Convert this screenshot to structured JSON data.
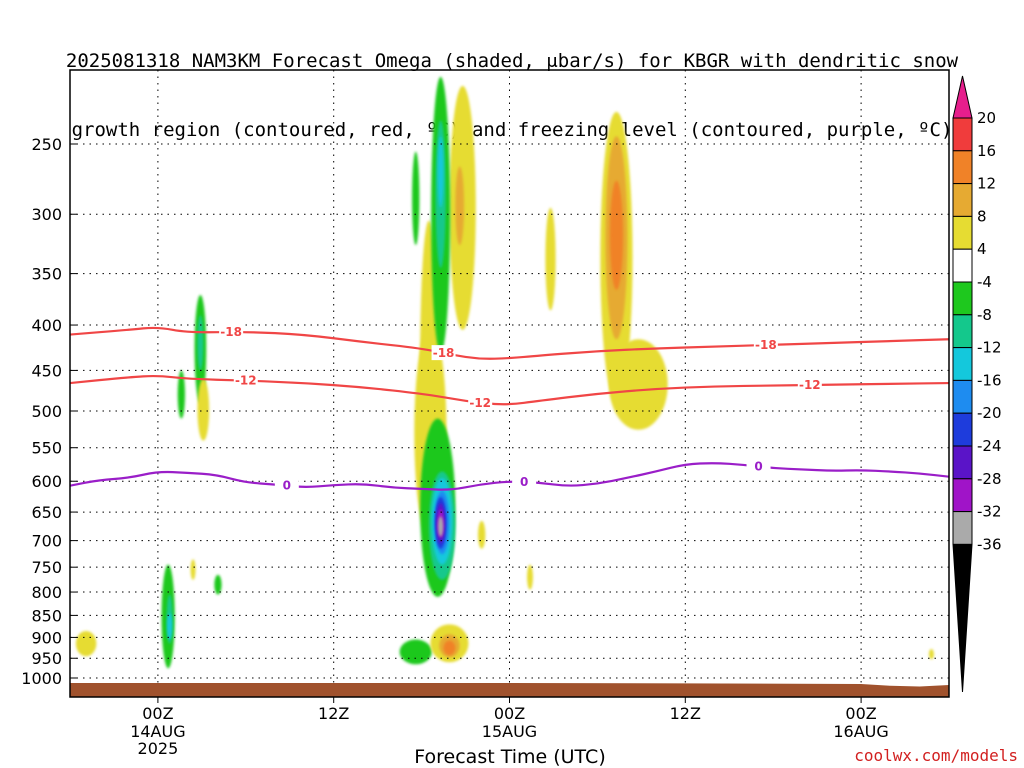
{
  "title": {
    "line1": "2025081318 NAM3KM Forecast Omega (shaded, μbar/s) for KBGR with dendritic snow",
    "line2": "growth region (contoured, red, ºC) and freezing level (contoured, purple, ºC)"
  },
  "credit": "coolwx.com/models",
  "chart_data": {
    "type": "heatmap",
    "xlabel": "Forecast Time (UTC)",
    "ylabel": "",
    "x_unit": "forecast hour from 2025-08-13 18Z",
    "xlim": [
      0,
      60
    ],
    "ylim": [
      1025,
      200
    ],
    "y_scale": "log-pressure",
    "x_ticks": [
      {
        "hour": 6,
        "label": "00Z",
        "sub": [
          "14AUG",
          "2025"
        ]
      },
      {
        "hour": 18,
        "label": "12Z",
        "sub": []
      },
      {
        "hour": 30,
        "label": "00Z",
        "sub": [
          "15AUG"
        ]
      },
      {
        "hour": 42,
        "label": "12Z",
        "sub": []
      },
      {
        "hour": 54,
        "label": "00Z",
        "sub": [
          "16AUG"
        ]
      }
    ],
    "y_ticks": [
      250,
      300,
      350,
      400,
      450,
      500,
      550,
      600,
      650,
      700,
      750,
      800,
      850,
      900,
      950,
      1000
    ],
    "grid": true,
    "colorbar": {
      "label_unit": "μbar/s",
      "labels": [
        "20",
        "16",
        "12",
        "8",
        "4",
        "-4",
        "-8",
        "-12",
        "-16",
        "-20",
        "-24",
        "-28",
        "-32",
        "-36"
      ],
      "bins": [
        {
          "range": "16..20",
          "color": "#f03c3c"
        },
        {
          "range": "12..16",
          "color": "#f08228"
        },
        {
          "range": "8..12",
          "color": "#e6aa32"
        },
        {
          "range": "4..8",
          "color": "#e6dc32"
        },
        {
          "range": "-4..4",
          "color": "#ffffff"
        },
        {
          "range": "-8..-4",
          "color": "#1ec81e"
        },
        {
          "range": "-12..-8",
          "color": "#14c88c"
        },
        {
          "range": "-16..-12",
          "color": "#14c8dc"
        },
        {
          "range": "-20..-16",
          "color": "#1e8cf0"
        },
        {
          "range": "-24..-20",
          "color": "#1e3cdc"
        },
        {
          "range": "-28..-24",
          "color": "#5a14c8"
        },
        {
          "range": "-32..-28",
          "color": "#a014c8"
        },
        {
          "range": "-36..-32",
          "color": "#aaaaaa"
        }
      ],
      "over_color": "#e61e8c",
      "under_color": "#000000"
    },
    "contours": [
      {
        "name": "-18",
        "color": "#f04646",
        "label": "-18",
        "x": [
          0,
          4,
          6,
          8,
          12,
          16,
          20,
          24,
          26,
          28,
          30,
          32,
          36,
          40,
          44,
          48,
          52,
          56,
          60
        ],
        "y": [
          410,
          405,
          402,
          408,
          407,
          410,
          418,
          425,
          432,
          437,
          436,
          433,
          428,
          425,
          423,
          421,
          419,
          417,
          415
        ]
      },
      {
        "name": "-12",
        "color": "#f04646",
        "label": "-12",
        "x": [
          0,
          4,
          6,
          8,
          12,
          16,
          20,
          24,
          26,
          28,
          30,
          32,
          36,
          40,
          44,
          48,
          52,
          56,
          60
        ],
        "y": [
          465,
          458,
          456,
          460,
          462,
          465,
          470,
          478,
          484,
          490,
          492,
          487,
          478,
          472,
          469,
          468,
          467,
          466,
          465
        ]
      },
      {
        "name": "0",
        "color": "#9a1ec8",
        "label": "0",
        "x": [
          0,
          2,
          4,
          6,
          8,
          10,
          12,
          14,
          16,
          18,
          20,
          22,
          24,
          26,
          28,
          30,
          32,
          34,
          36,
          38,
          40,
          42,
          44,
          46,
          48,
          50,
          52,
          54,
          56,
          58,
          60
        ],
        "y": [
          607,
          598,
          595,
          585,
          587,
          590,
          602,
          605,
          610,
          606,
          604,
          610,
          612,
          614,
          605,
          600,
          602,
          608,
          604,
          595,
          585,
          574,
          572,
          575,
          580,
          582,
          584,
          583,
          585,
          588,
          593
        ]
      }
    ],
    "omega_cells": [
      {
        "cx": 1.1,
        "p": 915,
        "w": 1.4,
        "h_hpa": 60,
        "v": 6
      },
      {
        "cx": 6.7,
        "p": 860,
        "w": 0.9,
        "h_hpa": 230,
        "v": -5
      },
      {
        "cx": 6.8,
        "p": 860,
        "w": 0.4,
        "h_hpa": 110,
        "v": -9
      },
      {
        "cx": 6.8,
        "p": 875,
        "w": 0.2,
        "h_hpa": 60,
        "v": -13
      },
      {
        "cx": 8.9,
        "p": 430,
        "w": 0.8,
        "h_hpa": 120,
        "v": -5
      },
      {
        "cx": 8.9,
        "p": 420,
        "w": 0.4,
        "h_hpa": 60,
        "v": -9
      },
      {
        "cx": 9.1,
        "p": 500,
        "w": 0.8,
        "h_hpa": 80,
        "v": 5
      },
      {
        "cx": 7.6,
        "p": 480,
        "w": 0.5,
        "h_hpa": 60,
        "v": -5
      },
      {
        "cx": 8.4,
        "p": 755,
        "w": 0.3,
        "h_hpa": 40,
        "v": 5
      },
      {
        "cx": 10.1,
        "p": 785,
        "w": 0.5,
        "h_hpa": 40,
        "v": -5
      },
      {
        "cx": 23.6,
        "p": 290,
        "w": 0.5,
        "h_hpa": 70,
        "v": -5
      },
      {
        "cx": 24.5,
        "p": 470,
        "w": 1.2,
        "h_hpa": 330,
        "v": 5
      },
      {
        "cx": 25.3,
        "p": 320,
        "w": 1.3,
        "h_hpa": 220,
        "v": -6
      },
      {
        "cx": 25.3,
        "p": 290,
        "w": 0.7,
        "h_hpa": 110,
        "v": -9
      },
      {
        "cx": 25.3,
        "p": 270,
        "w": 0.4,
        "h_hpa": 50,
        "v": -13
      },
      {
        "cx": 26.8,
        "p": 310,
        "w": 1.8,
        "h_hpa": 190,
        "v": 5
      },
      {
        "cx": 26.6,
        "p": 295,
        "w": 0.6,
        "h_hpa": 60,
        "v": 9
      },
      {
        "cx": 24.6,
        "p": 550,
        "w": 2.2,
        "h_hpa": 300,
        "v": 5
      },
      {
        "cx": 23.6,
        "p": 935,
        "w": 2.2,
        "h_hpa": 60,
        "v": -5
      },
      {
        "cx": 25.1,
        "p": 660,
        "w": 2.4,
        "h_hpa": 300,
        "v": -6
      },
      {
        "cx": 25.4,
        "p": 680,
        "w": 1.8,
        "h_hpa": 190,
        "v": -10
      },
      {
        "cx": 25.4,
        "p": 670,
        "w": 1.4,
        "h_hpa": 150,
        "v": -14
      },
      {
        "cx": 25.4,
        "p": 670,
        "w": 1.0,
        "h_hpa": 110,
        "v": -18
      },
      {
        "cx": 25.3,
        "p": 670,
        "w": 0.8,
        "h_hpa": 90,
        "v": -22
      },
      {
        "cx": 25.3,
        "p": 670,
        "w": 0.6,
        "h_hpa": 70,
        "v": -26
      },
      {
        "cx": 25.3,
        "p": 670,
        "w": 0.4,
        "h_hpa": 50,
        "v": -30
      },
      {
        "cx": 25.3,
        "p": 675,
        "w": 0.2,
        "h_hpa": 35,
        "v": -34
      },
      {
        "cx": 25.9,
        "p": 915,
        "w": 2.6,
        "h_hpa": 90,
        "v": 5
      },
      {
        "cx": 25.9,
        "p": 920,
        "w": 1.4,
        "h_hpa": 55,
        "v": 10
      },
      {
        "cx": 25.9,
        "p": 925,
        "w": 0.8,
        "h_hpa": 35,
        "v": 14
      },
      {
        "cx": 28.1,
        "p": 690,
        "w": 0.5,
        "h_hpa": 50,
        "v": 5
      },
      {
        "cx": 31.4,
        "p": 770,
        "w": 0.4,
        "h_hpa": 50,
        "v": 5
      },
      {
        "cx": 32.8,
        "p": 340,
        "w": 0.7,
        "h_hpa": 90,
        "v": 5
      },
      {
        "cx": 37.3,
        "p": 360,
        "w": 2.2,
        "h_hpa": 260,
        "v": 5
      },
      {
        "cx": 37.3,
        "p": 330,
        "w": 1.5,
        "h_hpa": 170,
        "v": 9
      },
      {
        "cx": 37.3,
        "p": 320,
        "w": 0.9,
        "h_hpa": 90,
        "v": 13
      },
      {
        "cx": 38.8,
        "p": 470,
        "w": 4.0,
        "h_hpa": 110,
        "v": 5
      },
      {
        "cx": 58.8,
        "p": 940,
        "w": 0.25,
        "h_hpa": 25,
        "v": 5
      }
    ]
  }
}
